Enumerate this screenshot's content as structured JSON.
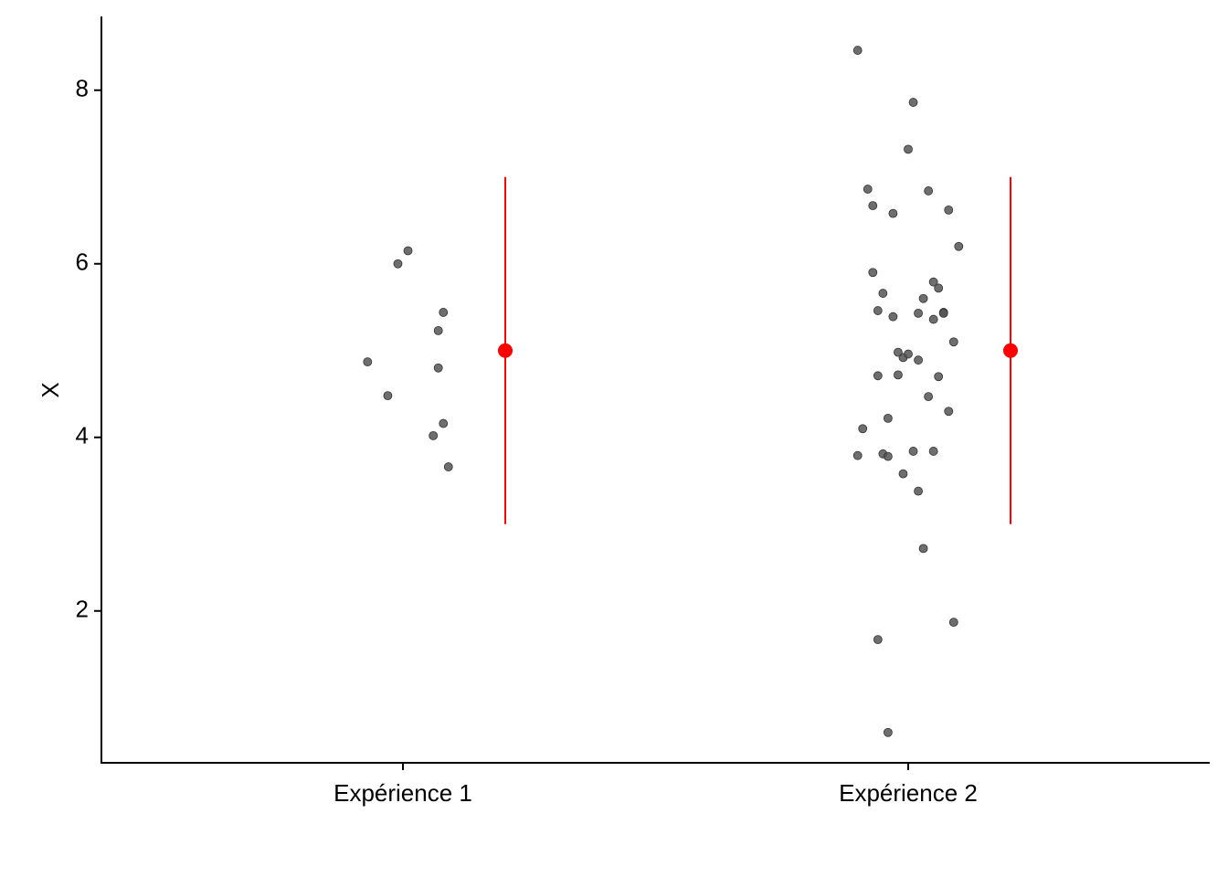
{
  "chart_data": {
    "type": "scatter",
    "title": "",
    "xlabel": "",
    "ylabel": "X",
    "categories": [
      "Expérience 1",
      "Expérience 2"
    ],
    "ylim": [
      0.25,
      8.85
    ],
    "yticks": [
      2,
      4,
      6,
      8
    ],
    "grid": false,
    "colors": {
      "points": "#555555",
      "summary": "#ff0000",
      "axis": "#000000"
    },
    "points": [
      {
        "category": "Expérience 1",
        "jitter": [
          -0.07,
          -0.03,
          0.01,
          -0.01,
          0.08,
          0.07,
          0.07,
          0.06,
          0.08,
          0.09
        ],
        "values": [
          4.87,
          4.48,
          6.15,
          6.0,
          5.44,
          5.23,
          4.8,
          4.02,
          4.16,
          3.66
        ]
      },
      {
        "category": "Expérience 2",
        "jitter": [
          -0.1,
          -0.09,
          -0.07,
          -0.06,
          -0.05,
          -0.04,
          -0.03,
          -0.02,
          -0.01,
          0.0,
          0.01,
          0.02,
          0.03,
          0.04,
          0.05,
          0.06,
          0.07,
          0.08,
          0.09,
          0.1,
          -0.1,
          -0.08,
          -0.07,
          -0.06,
          -0.05,
          -0.04,
          -0.03,
          -0.01,
          0.0,
          0.01,
          0.02,
          0.03,
          0.04,
          0.05,
          0.06,
          0.07,
          0.08,
          0.09,
          -0.06,
          -0.04,
          -0.02,
          0.05,
          0.02
        ],
        "values": [
          8.46,
          4.1,
          5.9,
          4.71,
          5.66,
          4.22,
          5.39,
          4.72,
          3.58,
          7.32,
          3.84,
          4.89,
          5.6,
          4.47,
          5.36,
          4.7,
          5.44,
          4.3,
          5.1,
          6.2,
          3.79,
          6.86,
          6.67,
          5.46,
          3.81,
          3.78,
          6.58,
          4.92,
          4.96,
          7.86,
          3.38,
          2.72,
          6.84,
          5.79,
          5.72,
          5.43,
          6.62,
          1.87,
          1.67,
          0.6,
          4.98,
          3.84,
          5.43
        ]
      }
    ],
    "summary": [
      {
        "category": "Expérience 1",
        "mean": 5.0,
        "lower": 3.0,
        "upper": 7.0
      },
      {
        "category": "Expérience 2",
        "mean": 5.0,
        "lower": 3.0,
        "upper": 7.0
      }
    ]
  }
}
